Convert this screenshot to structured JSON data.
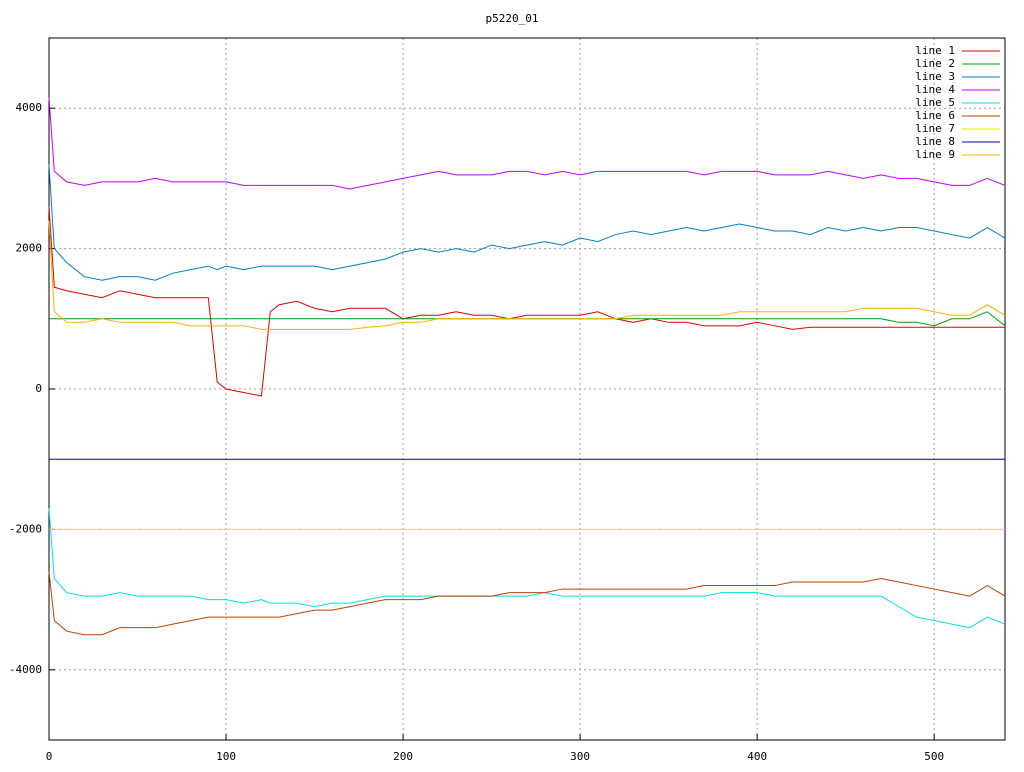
{
  "chart_data": {
    "type": "line",
    "title": "p5220_01",
    "x": [
      0,
      3,
      10,
      20,
      30,
      40,
      50,
      60,
      70,
      80,
      90,
      95,
      100,
      110,
      120,
      125,
      130,
      140,
      150,
      160,
      170,
      180,
      190,
      200,
      210,
      220,
      230,
      240,
      250,
      260,
      270,
      280,
      290,
      300,
      310,
      320,
      330,
      340,
      350,
      360,
      370,
      380,
      390,
      400,
      410,
      420,
      430,
      440,
      450,
      460,
      470,
      480,
      490,
      500,
      510,
      520,
      530,
      540
    ],
    "xlim": [
      0,
      540
    ],
    "xticks": [
      0,
      100,
      200,
      300,
      400,
      500
    ],
    "ylim": [
      -5000,
      5000
    ],
    "yticks": [
      -4000,
      -2000,
      0,
      2000,
      4000
    ],
    "grid": true,
    "legend": "top-right",
    "series": [
      {
        "name": "line 1",
        "color": "#e00000",
        "values": [
          2600,
          1450,
          1400,
          1350,
          1300,
          1400,
          1350,
          1300,
          1300,
          1300,
          1300,
          100,
          0,
          -50,
          -100,
          1100,
          1200,
          1250,
          1150,
          1100,
          1150,
          1150,
          1150,
          1000,
          1050,
          1050,
          1100,
          1050,
          1050,
          1000,
          1050,
          1050,
          1050,
          1050,
          1100,
          1000,
          950,
          1000,
          950,
          950,
          900,
          900,
          900,
          950,
          900,
          850,
          880,
          880,
          880,
          880,
          880,
          880,
          880,
          880,
          880,
          880,
          880,
          880
        ]
      },
      {
        "name": "line 2",
        "color": "#00a000",
        "values": [
          1000,
          1000,
          1000,
          1000,
          1000,
          1000,
          1000,
          1000,
          1000,
          1000,
          1000,
          1000,
          1000,
          1000,
          1000,
          1000,
          1000,
          1000,
          1000,
          1000,
          1000,
          1000,
          1000,
          1000,
          1000,
          1000,
          1000,
          1000,
          1000,
          1000,
          1000,
          1000,
          1000,
          1000,
          1000,
          1000,
          1000,
          1000,
          1000,
          1000,
          1000,
          1000,
          1000,
          1000,
          1000,
          1000,
          1000,
          1000,
          1000,
          1000,
          1000,
          950,
          950,
          900,
          1000,
          1000,
          1100,
          900
        ]
      },
      {
        "name": "line 3",
        "color": "#0080c0",
        "values": [
          3200,
          2000,
          1800,
          1600,
          1550,
          1600,
          1600,
          1550,
          1650,
          1700,
          1750,
          1700,
          1750,
          1700,
          1750,
          1750,
          1750,
          1750,
          1750,
          1700,
          1750,
          1800,
          1850,
          1950,
          2000,
          1950,
          2000,
          1950,
          2050,
          2000,
          2050,
          2100,
          2050,
          2150,
          2100,
          2200,
          2250,
          2200,
          2250,
          2300,
          2250,
          2300,
          2350,
          2300,
          2250,
          2250,
          2200,
          2300,
          2250,
          2300,
          2250,
          2300,
          2300,
          2250,
          2200,
          2150,
          2300,
          2150
        ]
      },
      {
        "name": "line 4",
        "color": "#c000ff",
        "values": [
          4150,
          3100,
          2950,
          2900,
          2950,
          2950,
          2950,
          3000,
          2950,
          2950,
          2950,
          2950,
          2950,
          2900,
          2900,
          2900,
          2900,
          2900,
          2900,
          2900,
          2850,
          2900,
          2950,
          3000,
          3050,
          3100,
          3050,
          3050,
          3050,
          3100,
          3100,
          3050,
          3100,
          3050,
          3100,
          3100,
          3100,
          3100,
          3100,
          3100,
          3050,
          3100,
          3100,
          3100,
          3050,
          3050,
          3050,
          3100,
          3050,
          3000,
          3050,
          3000,
          3000,
          2950,
          2900,
          2900,
          3000,
          2900
        ]
      },
      {
        "name": "line 5",
        "color": "#00e0e0",
        "values": [
          -1700,
          -2700,
          -2900,
          -2950,
          -2950,
          -2900,
          -2950,
          -2950,
          -2950,
          -2950,
          -3000,
          -3000,
          -3000,
          -3050,
          -3000,
          -3050,
          -3050,
          -3050,
          -3100,
          -3050,
          -3050,
          -3000,
          -2950,
          -2950,
          -2950,
          -2950,
          -2950,
          -2950,
          -2950,
          -2950,
          -2950,
          -2900,
          -2950,
          -2950,
          -2950,
          -2950,
          -2950,
          -2950,
          -2950,
          -2950,
          -2950,
          -2900,
          -2900,
          -2900,
          -2950,
          -2950,
          -2950,
          -2950,
          -2950,
          -2950,
          -2950,
          -3100,
          -3250,
          -3300,
          -3350,
          -3400,
          -3250,
          -3350
        ]
      },
      {
        "name": "line 6",
        "color": "#c04000",
        "values": [
          -2600,
          -3300,
          -3450,
          -3500,
          -3500,
          -3400,
          -3400,
          -3400,
          -3350,
          -3300,
          -3250,
          -3250,
          -3250,
          -3250,
          -3250,
          -3250,
          -3250,
          -3200,
          -3150,
          -3150,
          -3100,
          -3050,
          -3000,
          -3000,
          -3000,
          -2950,
          -2950,
          -2950,
          -2950,
          -2900,
          -2900,
          -2900,
          -2850,
          -2850,
          -2850,
          -2850,
          -2850,
          -2850,
          -2850,
          -2850,
          -2800,
          -2800,
          -2800,
          -2800,
          -2800,
          -2750,
          -2750,
          -2750,
          -2750,
          -2750,
          -2700,
          -2750,
          -2800,
          -2850,
          -2900,
          -2950,
          -2800,
          -2950
        ]
      },
      {
        "name": "line 7",
        "color": "#e8e800",
        "values": [
          -2000,
          -2000,
          -2000,
          -2000,
          -2000,
          -2000,
          -2000,
          -2000,
          -2000,
          -2000,
          -2000,
          -2000,
          -2000,
          -2000,
          -2000,
          -2000,
          -2000,
          -2000,
          -2000,
          -2000,
          -2000,
          -2000,
          -2000,
          -2000,
          -2000,
          -2000,
          -2000,
          -2000,
          -2000,
          -2000,
          -2000,
          -2000,
          -2000,
          -2000,
          -2000,
          -2000,
          -2000,
          -2000,
          -2000,
          -2000,
          -2000,
          -2000,
          -2000,
          -2000,
          -2000,
          -2000,
          -2000,
          -2000,
          -2000,
          -2000,
          -2000,
          -2000,
          -2000,
          -2000,
          -2000,
          -2000,
          -2000,
          -2000
        ]
      },
      {
        "name": "line 8",
        "color": "#0000b0",
        "values": [
          -1000,
          -1000,
          -1000,
          -1000,
          -1000,
          -1000,
          -1000,
          -1000,
          -1000,
          -1000,
          -1000,
          -1000,
          -1000,
          -1000,
          -1000,
          -1000,
          -1000,
          -1000,
          -1000,
          -1000,
          -1000,
          -1000,
          -1000,
          -1000,
          -1000,
          -1000,
          -1000,
          -1000,
          -1000,
          -1000,
          -1000,
          -1000,
          -1000,
          -1000,
          -1000,
          -1000,
          -1000,
          -1000,
          -1000,
          -1000,
          -1000,
          -1000,
          -1000,
          -1000,
          -1000,
          -1000,
          -1000,
          -1000,
          -1000,
          -1000,
          -1000,
          -1000,
          -1000,
          -1000,
          -1000,
          -1000,
          -1000,
          -1000
        ]
      },
      {
        "name": "line 9",
        "color": "#ffb000",
        "values": [
          2400,
          1100,
          950,
          950,
          1000,
          950,
          950,
          950,
          950,
          900,
          900,
          900,
          900,
          900,
          850,
          850,
          850,
          850,
          850,
          850,
          850,
          880,
          900,
          950,
          950,
          1000,
          1000,
          1000,
          1000,
          1000,
          1000,
          1000,
          1000,
          1000,
          1000,
          1000,
          1050,
          1050,
          1050,
          1050,
          1050,
          1050,
          1100,
          1100,
          1100,
          1100,
          1100,
          1100,
          1100,
          1150,
          1150,
          1150,
          1150,
          1100,
          1050,
          1050,
          1200,
          1050
        ]
      }
    ]
  }
}
